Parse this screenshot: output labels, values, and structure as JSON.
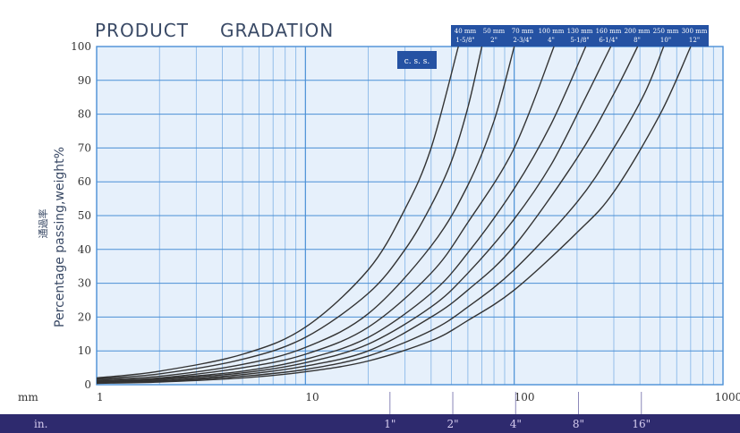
{
  "chart_data": {
    "type": "line",
    "title": "PRODUCT",
    "subtitle": "GRADATION",
    "ylabel": "Percentage passing,weight%",
    "ylabel_cn": "通過率",
    "xunit_mm": "mm",
    "xunit_in": "in.",
    "x_scale": "log",
    "xlim": [
      1,
      1000
    ],
    "ylim": [
      0,
      100
    ],
    "grid": true,
    "y_ticks": [
      "0",
      "10",
      "20",
      "30",
      "40",
      "50",
      "60",
      "70",
      "80",
      "90",
      "100"
    ],
    "x_ticks": [
      {
        "x": 1,
        "label": "1"
      },
      {
        "x": 10,
        "label": "10"
      },
      {
        "x": 100,
        "label": "100"
      },
      {
        "x": 1000,
        "label": "1000"
      }
    ],
    "inch_ticks": [
      {
        "x": 25.4,
        "label": "1\""
      },
      {
        "x": 50.8,
        "label": "2\""
      },
      {
        "x": 101.6,
        "label": "4\""
      },
      {
        "x": 203.2,
        "label": "8\""
      },
      {
        "x": 406.4,
        "label": "16\""
      }
    ],
    "css_label": "c. s. s.",
    "curve_labels_top": [
      "40 mm",
      "50 mm",
      "70 mm",
      "100 mm",
      "130 mm",
      "160 mm",
      "200 mm",
      "250 mm",
      "300 mm"
    ],
    "curve_labels_bottom": [
      "1-5/8\"",
      "2\"",
      "2-3/4\"",
      "4\"",
      "5-1/8\"",
      "6-1/4\"",
      "8\"",
      "10\"",
      "12\""
    ],
    "series": [
      {
        "name": "40 mm",
        "x": [
          1,
          2,
          5,
          10,
          20,
          30,
          40,
          54
        ],
        "y": [
          2,
          4,
          9,
          17,
          34,
          52,
          70,
          100
        ]
      },
      {
        "name": "50 mm",
        "x": [
          1,
          2,
          5,
          10,
          20,
          30,
          40,
          50,
          60,
          70
        ],
        "y": [
          1.8,
          3.2,
          7.5,
          14,
          27,
          40,
          53,
          66,
          82,
          100
        ]
      },
      {
        "name": "70 mm",
        "x": [
          1,
          2,
          5,
          10,
          20,
          40,
          60,
          80,
          100
        ],
        "y": [
          1.5,
          2.5,
          6,
          11,
          21,
          41,
          59,
          78,
          100
        ]
      },
      {
        "name": "100 mm",
        "x": [
          1,
          2,
          5,
          10,
          20,
          40,
          60,
          100,
          155
        ],
        "y": [
          1.2,
          2,
          5,
          9,
          17,
          33,
          48,
          70,
          100
        ]
      },
      {
        "name": "130 mm",
        "x": [
          1,
          2,
          5,
          10,
          20,
          40,
          60,
          100,
          150,
          220
        ],
        "y": [
          1,
          1.8,
          4,
          7.5,
          14,
          27,
          39,
          58,
          77,
          100
        ]
      },
      {
        "name": "160 mm",
        "x": [
          1,
          2,
          5,
          10,
          20,
          40,
          60,
          100,
          150,
          220,
          290
        ],
        "y": [
          0.8,
          1.5,
          3.5,
          6.5,
          12,
          23,
          33,
          49,
          65,
          85,
          100
        ]
      },
      {
        "name": "200 mm",
        "x": [
          1,
          2,
          5,
          10,
          20,
          40,
          60,
          100,
          200,
          300,
          390
        ],
        "y": [
          0.6,
          1.2,
          3,
          5.5,
          10,
          20,
          28,
          41,
          67,
          86,
          100
        ]
      },
      {
        "name": "250 mm",
        "x": [
          1,
          2,
          5,
          10,
          20,
          40,
          60,
          100,
          200,
          300,
          420,
          520
        ],
        "y": [
          0.5,
          1,
          2.5,
          4.5,
          8.5,
          16,
          23,
          34,
          54,
          70,
          86,
          100
        ]
      },
      {
        "name": "300 mm",
        "x": [
          1,
          2,
          5,
          10,
          20,
          40,
          60,
          100,
          200,
          300,
          500,
          700
        ],
        "y": [
          0.4,
          0.8,
          2,
          3.8,
          7,
          13,
          19,
          28,
          45,
          57,
          80,
          100
        ]
      }
    ]
  },
  "colors": {
    "grid_major": "#4a8fd6",
    "grid_minor": "#7fb2e6",
    "curve": "#333333",
    "label_box": "#2552a3",
    "band": "#2e2a6e",
    "plot_bg": "#e6f0fb"
  }
}
